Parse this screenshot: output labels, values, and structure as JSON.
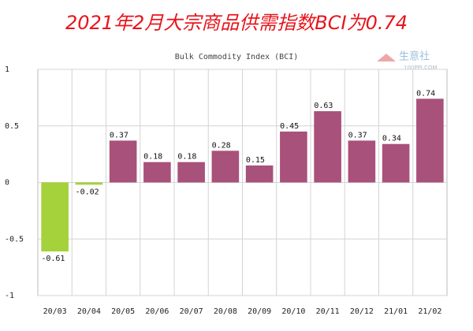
{
  "chart_data": {
    "type": "bar",
    "title": "2021年2月大宗商品供需指数BCI为0.74",
    "subtitle": "Bulk Commodity Index (BCI)",
    "watermark": {
      "name": "生意社",
      "site": "100PPI.COM"
    },
    "categories": [
      "20/03",
      "20/04",
      "20/05",
      "20/06",
      "20/07",
      "20/08",
      "20/09",
      "20/10",
      "20/11",
      "20/12",
      "21/01",
      "21/02"
    ],
    "values": [
      -0.61,
      -0.02,
      0.37,
      0.18,
      0.18,
      0.28,
      0.15,
      0.45,
      0.63,
      0.37,
      0.34,
      0.74
    ],
    "colors": {
      "positive": "#a8517a",
      "negative": "#a5d13a"
    },
    "ylim": [
      -1,
      1
    ],
    "yticks": [
      1,
      0.5,
      0,
      -0.5,
      -1
    ],
    "grid": true
  }
}
